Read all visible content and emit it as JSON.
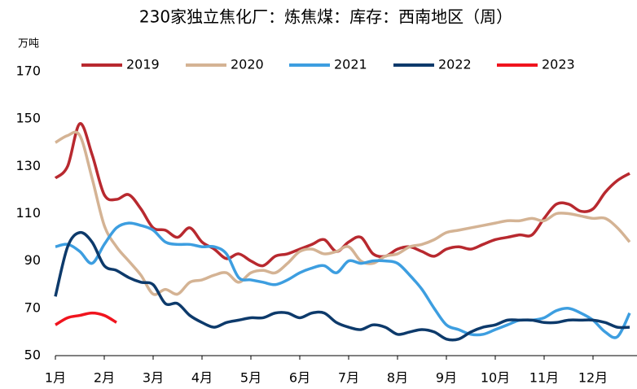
{
  "chart_data": {
    "type": "line",
    "title": "230家独立焦化厂：炼焦煤：库存：西南地区（周）",
    "y_unit": "万吨",
    "categories": [
      "1月",
      null,
      null,
      null,
      "2月",
      null,
      null,
      null,
      "3月",
      null,
      null,
      null,
      "4月",
      null,
      null,
      null,
      "5月",
      null,
      null,
      null,
      "6月",
      null,
      null,
      null,
      "7月",
      null,
      null,
      null,
      "8月",
      null,
      null,
      null,
      "9月",
      null,
      null,
      null,
      "10月",
      null,
      null,
      null,
      "11月",
      null,
      null,
      null,
      "12月",
      null,
      null,
      null
    ],
    "ylim": [
      50,
      170
    ],
    "yticks": [
      50,
      70,
      90,
      110,
      130,
      150,
      170
    ],
    "series": [
      {
        "name": "2019",
        "color": "#b8292f",
        "values": [
          125,
          130,
          148,
          135,
          118,
          116,
          118,
          112,
          104,
          103,
          100,
          104,
          98,
          95,
          91,
          93,
          90,
          88,
          92,
          93,
          95,
          97,
          99,
          94,
          98,
          100,
          93,
          92,
          95,
          96,
          94,
          92,
          95,
          96,
          95,
          97,
          99,
          100,
          101,
          101,
          108,
          114,
          114,
          111,
          112,
          119,
          124,
          127
        ]
      },
      {
        "name": "2020",
        "color": "#d4b394",
        "values": [
          140,
          143,
          143,
          125,
          105,
          96,
          90,
          84,
          76,
          78,
          76,
          81,
          82,
          84,
          85,
          81,
          85,
          86,
          85,
          89,
          94,
          95,
          93,
          94,
          96,
          90,
          89,
          92,
          93,
          96,
          97,
          99,
          102,
          103,
          104,
          105,
          106,
          107,
          107,
          108,
          107,
          110,
          110,
          109,
          108,
          108,
          104,
          98
        ]
      },
      {
        "name": "2021",
        "color": "#3d9ee0",
        "values": [
          96,
          97,
          94,
          89,
          97,
          104,
          106,
          105,
          103,
          98,
          97,
          97,
          96,
          96,
          93,
          83,
          82,
          81,
          80,
          82,
          85,
          87,
          88,
          85,
          90,
          89,
          90,
          90,
          89,
          84,
          78,
          70,
          63,
          61,
          59,
          59,
          61,
          63,
          65,
          65,
          66,
          69,
          70,
          68,
          65,
          60,
          58,
          68
        ]
      },
      {
        "name": "2022",
        "color": "#0d3a6b",
        "values": [
          75,
          96,
          102,
          98,
          88,
          86,
          83,
          81,
          80,
          72,
          72,
          67,
          64,
          62,
          64,
          65,
          66,
          66,
          68,
          68,
          66,
          68,
          68,
          64,
          62,
          61,
          63,
          62,
          59,
          60,
          61,
          60,
          57,
          57,
          60,
          62,
          63,
          65,
          65,
          65,
          64,
          64,
          65,
          65,
          65,
          64,
          62,
          62
        ]
      },
      {
        "name": "2023",
        "color": "#f0141e",
        "values": [
          63,
          66,
          67,
          68,
          67,
          64,
          null,
          null,
          null,
          null,
          null,
          null,
          null,
          null,
          null,
          null,
          null,
          null,
          null,
          null,
          null,
          null,
          null,
          null,
          null,
          null,
          null,
          null,
          null,
          null,
          null,
          null,
          null,
          null,
          null,
          null,
          null,
          null,
          null,
          null,
          null,
          null,
          null,
          null,
          null,
          null,
          null,
          null
        ]
      }
    ]
  }
}
